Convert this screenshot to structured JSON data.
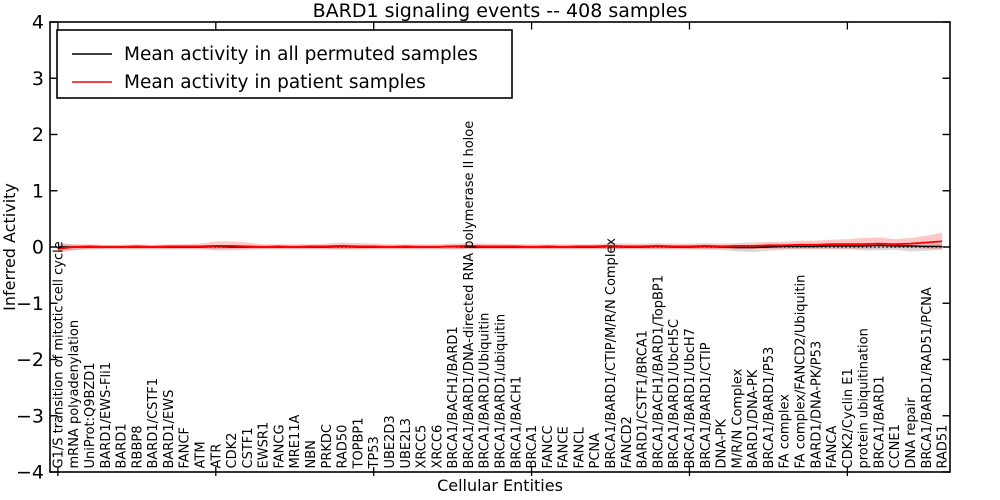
{
  "title": "BARD1 signaling events -- 408 samples",
  "axes": {
    "ylabel": "Inferred Activity",
    "xlabel": "Cellular Entities",
    "ylim": [
      -4,
      4
    ],
    "yticks": [
      4,
      3,
      2,
      1,
      0,
      -1,
      -2,
      -3,
      -4
    ]
  },
  "legend": {
    "position": "upper left",
    "items": [
      {
        "label": "Mean activity in all permuted samples",
        "color": "#000000"
      },
      {
        "label": "Mean activity in patient samples",
        "color": "#ff0000"
      }
    ]
  },
  "chart_data": {
    "type": "line",
    "title": "BARD1 signaling events -- 408 samples",
    "xlabel": "Cellular Entities",
    "ylabel": "Inferred Activity",
    "ylim": [
      -4,
      4
    ],
    "yticks": [
      -4,
      -3,
      -2,
      -1,
      0,
      1,
      2,
      3,
      4
    ],
    "grid": false,
    "zero_line": true,
    "legend_position": "upper left",
    "categories": [
      "G1/S transition of mitotic cell cycle",
      "mRNA polyadenylation",
      "UniProt:Q9BZD1",
      "BARD1/EWS-Fli1",
      "BARD1",
      "RBBP8",
      "BARD1/CSTF1",
      "BARD1/EWS",
      "FANCF",
      "ATM",
      "ATR",
      "CDK2",
      "CSTF1",
      "EWSR1",
      "FANCG",
      "MRE11A",
      "NBN",
      "PRKDC",
      "RAD50",
      "TOPBP1",
      "TP53",
      "UBE2D3",
      "UBE2L3",
      "XRCC5",
      "XRCC6",
      "BRCA1/BACH1/BARD1",
      "BRCA1/BARD1/DNA-directed RNA polymerase II holoe",
      "BRCA1/BARD1/Ubiquitin",
      "BRCA1/BARD1/ubiquitin",
      "BRCA1/BACH1",
      "BRCA1",
      "FANCC",
      "FANCE",
      "FANCL",
      "PCNA",
      "BRCA1/BARD1/CTIP/M/R/N Complex",
      "FANCD2",
      "BARD1/CSTF1/BRCA1",
      "BRCA1/BACH1/BARD1/TopBP1",
      "BRCA1/BARD1/UbcH5C",
      "BRCA1/BARD1/UbcH7",
      "BRCA1/BARD1/CTIP",
      "DNA-PK",
      "M/R/N Complex",
      "BARD1/DNA-PK",
      "BRCA1/BARD1/P53",
      "FA complex",
      "FA complex/FANCD2/Ubiquitin",
      "BARD1/DNA-PK/P53",
      "FANCA",
      "CDK2/Cyclin E1",
      "protein ubiquitination",
      "BRCA1/BARD1",
      "CCNE1",
      "DNA repair",
      "BRCA1/BARD1/RAD51/PCNA",
      "RAD51"
    ],
    "series": [
      {
        "name": "Mean activity in all permuted samples",
        "color": "#000000",
        "line_width": 1.4,
        "band_color": "#999999",
        "band_opacity": 0.35,
        "values": [
          0,
          0,
          0,
          0,
          0,
          0,
          0,
          0,
          0,
          0,
          0.01,
          0,
          0,
          0,
          0,
          0,
          0,
          0,
          0.01,
          0,
          0,
          0,
          0,
          0,
          0,
          0.01,
          0,
          0,
          0,
          0,
          0,
          0,
          0,
          0,
          0,
          0.01,
          0,
          0,
          0.01,
          0,
          0,
          0.01,
          0,
          -0.01,
          -0.01,
          0,
          0.01,
          0.01,
          0.01,
          0.02,
          0.02,
          0.02,
          0.03,
          0.02,
          0.02,
          0.01,
          0.01
        ],
        "band_upper": [
          0.05,
          0.04,
          0.03,
          0.03,
          0.03,
          0.03,
          0.03,
          0.03,
          0.03,
          0.03,
          0.04,
          0.03,
          0.03,
          0.03,
          0.03,
          0.03,
          0.03,
          0.03,
          0.04,
          0.03,
          0.03,
          0.03,
          0.03,
          0.03,
          0.03,
          0.04,
          0.03,
          0.03,
          0.03,
          0.03,
          0.03,
          0.03,
          0.03,
          0.03,
          0.03,
          0.04,
          0.03,
          0.03,
          0.04,
          0.03,
          0.03,
          0.04,
          0.03,
          0.03,
          0.03,
          0.03,
          0.04,
          0.05,
          0.05,
          0.06,
          0.06,
          0.06,
          0.07,
          0.06,
          0.06,
          0.05,
          0.06
        ],
        "band_lower": [
          -0.07,
          -0.05,
          -0.04,
          -0.03,
          -0.03,
          -0.03,
          -0.03,
          -0.03,
          -0.03,
          -0.03,
          -0.04,
          -0.03,
          -0.03,
          -0.03,
          -0.03,
          -0.03,
          -0.03,
          -0.03,
          -0.04,
          -0.03,
          -0.03,
          -0.03,
          -0.03,
          -0.03,
          -0.03,
          -0.04,
          -0.03,
          -0.03,
          -0.03,
          -0.03,
          -0.03,
          -0.03,
          -0.03,
          -0.03,
          -0.03,
          -0.04,
          -0.03,
          -0.03,
          -0.04,
          -0.03,
          -0.04,
          -0.05,
          -0.05,
          -0.08,
          -0.09,
          -0.07,
          -0.05,
          -0.04,
          -0.04,
          -0.04,
          -0.04,
          -0.06,
          -0.06,
          -0.05,
          -0.08,
          -0.07,
          -0.05
        ]
      },
      {
        "name": "Mean activity in patient samples",
        "color": "#ff0000",
        "line_width": 1.8,
        "band_color": "#ff0000",
        "band_opacity": 0.22,
        "values": [
          -0.03,
          0,
          0.01,
          0,
          0,
          0.01,
          0,
          0.01,
          0.01,
          0.01,
          0.02,
          0.02,
          0.01,
          0,
          0.01,
          0,
          0.01,
          0.01,
          0.02,
          0.01,
          0.01,
          0,
          0.01,
          0,
          0,
          0.01,
          0.02,
          0.01,
          0.01,
          0.01,
          0,
          0.01,
          0,
          0.01,
          0.01,
          0.02,
          0.01,
          0.01,
          0.02,
          0.01,
          0.01,
          0.02,
          0.01,
          0.02,
          0.02,
          0.03,
          0.03,
          0.04,
          0.04,
          0.05,
          0.05,
          0.05,
          0.06,
          0.05,
          0.06,
          0.08,
          0.1
        ],
        "band_upper": [
          0.07,
          0.05,
          0.05,
          0.04,
          0.04,
          0.05,
          0.04,
          0.05,
          0.05,
          0.06,
          0.1,
          0.1,
          0.08,
          0.05,
          0.05,
          0.05,
          0.05,
          0.06,
          0.08,
          0.07,
          0.06,
          0.05,
          0.05,
          0.05,
          0.05,
          0.06,
          0.07,
          0.06,
          0.06,
          0.05,
          0.05,
          0.05,
          0.05,
          0.05,
          0.05,
          0.07,
          0.06,
          0.06,
          0.07,
          0.06,
          0.06,
          0.07,
          0.06,
          0.07,
          0.08,
          0.09,
          0.09,
          0.11,
          0.11,
          0.13,
          0.14,
          0.16,
          0.17,
          0.14,
          0.16,
          0.2,
          0.25
        ],
        "band_lower": [
          -0.1,
          -0.06,
          -0.04,
          -0.04,
          -0.04,
          -0.04,
          -0.04,
          -0.04,
          -0.04,
          -0.04,
          -0.06,
          -0.06,
          -0.05,
          -0.04,
          -0.04,
          -0.04,
          -0.04,
          -0.04,
          -0.05,
          -0.05,
          -0.04,
          -0.04,
          -0.04,
          -0.04,
          -0.04,
          -0.04,
          -0.04,
          -0.04,
          -0.04,
          -0.04,
          -0.04,
          -0.04,
          -0.04,
          -0.04,
          -0.04,
          -0.04,
          -0.04,
          -0.04,
          -0.04,
          -0.04,
          -0.04,
          -0.04,
          -0.04,
          -0.04,
          -0.04,
          -0.03,
          -0.03,
          -0.03,
          -0.03,
          -0.03,
          -0.03,
          -0.03,
          -0.02,
          -0.02,
          -0.02,
          -0.03,
          -0.04
        ]
      }
    ]
  }
}
